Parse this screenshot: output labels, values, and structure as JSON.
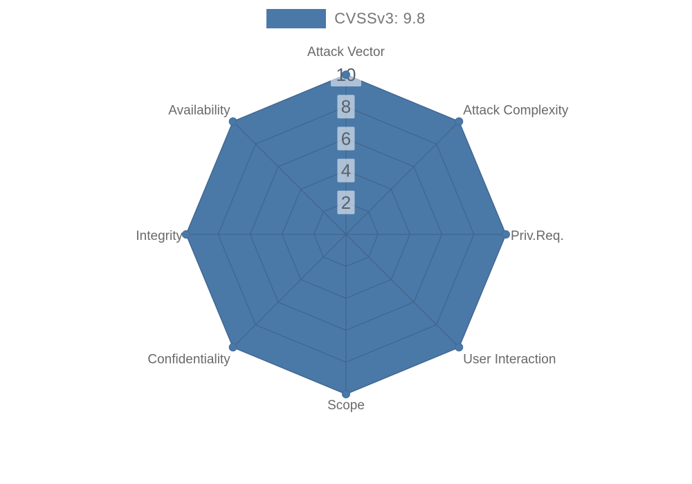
{
  "legend": {
    "label": "CVSSv3: 9.8",
    "swatch_color": "#4a79a8"
  },
  "chart_data": {
    "type": "radar",
    "categories": [
      "Attack Vector",
      "Attack Complexity",
      "Priv.Req.",
      "User Interaction",
      "Scope",
      "Confidentiality",
      "Integrity",
      "Availability"
    ],
    "series": [
      {
        "name": "CVSSv3: 9.8",
        "values": [
          10,
          10,
          10,
          10,
          10,
          10,
          10,
          10
        ]
      }
    ],
    "ticks": [
      2,
      4,
      6,
      8,
      10
    ],
    "rlim": [
      0,
      10
    ],
    "grid": true,
    "legend_position": "top",
    "colors": {
      "series_fill": "#4a79a8",
      "series_stroke": "#4a79a8",
      "marker_fill": "#4a79a8",
      "marker_stroke": "#3f6b99",
      "grid_line": "#41628a",
      "tick_text": "#57616b",
      "tick_box": "rgba(255,255,255,0.55)",
      "axis_label": "#696969",
      "legend_text": "#757575",
      "background": "#ffffff"
    }
  }
}
